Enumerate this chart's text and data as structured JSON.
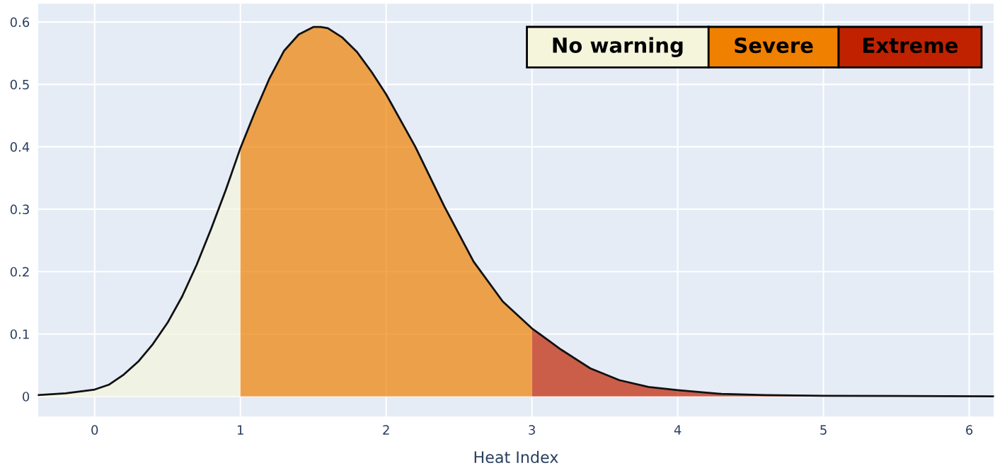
{
  "chart_data": {
    "type": "area",
    "xlabel": "Heat Index",
    "xlim": [
      -0.39,
      6.17
    ],
    "ylim": [
      -0.033,
      0.63
    ],
    "xticks": [
      0,
      1,
      2,
      3,
      4,
      5,
      6
    ],
    "yticks": [
      0,
      0.1,
      0.2,
      0.3,
      0.4,
      0.5,
      0.6
    ],
    "grid": true,
    "legend": "top right",
    "series": [
      {
        "name": "No warning",
        "color": "#f5f5dc",
        "x": [
          -0.39,
          -0.2,
          0,
          0.1,
          0.2,
          0.3,
          0.4,
          0.5,
          0.6,
          0.7,
          0.8,
          0.9,
          1.0
        ],
        "values": [
          0.002,
          0.005,
          0.011,
          0.019,
          0.035,
          0.056,
          0.084,
          0.118,
          0.16,
          0.211,
          0.269,
          0.331,
          0.398
        ]
      },
      {
        "name": "Severe",
        "color": "#f08000",
        "x": [
          1.0,
          1.1,
          1.2,
          1.3,
          1.4,
          1.5,
          1.55,
          1.6,
          1.7,
          1.8,
          1.9,
          2.0,
          2.2,
          2.4,
          2.6,
          2.8,
          3.0
        ],
        "values": [
          0.398,
          0.456,
          0.51,
          0.554,
          0.58,
          0.592,
          0.592,
          0.59,
          0.575,
          0.552,
          0.52,
          0.484,
          0.4,
          0.304,
          0.216,
          0.152,
          0.109
        ]
      },
      {
        "name": "Extreme",
        "color": "#c02200",
        "x": [
          3.0,
          3.2,
          3.4,
          3.6,
          3.8,
          4.0,
          4.3,
          4.6,
          5.0
        ],
        "values": [
          0.109,
          0.075,
          0.045,
          0.026,
          0.015,
          0.01,
          0.004,
          0.002,
          0.001
        ]
      },
      {
        "type": "line",
        "color": "#111111",
        "x": [
          -0.39,
          -0.2,
          0,
          0.1,
          0.2,
          0.3,
          0.4,
          0.5,
          0.6,
          0.7,
          0.8,
          0.9,
          1.0,
          1.1,
          1.2,
          1.3,
          1.4,
          1.5,
          1.55,
          1.6,
          1.7,
          1.8,
          1.9,
          2.0,
          2.2,
          2.4,
          2.6,
          2.8,
          3.0,
          3.2,
          3.4,
          3.6,
          3.8,
          4.0,
          4.3,
          4.6,
          5.0,
          6.17
        ],
        "values": [
          0.002,
          0.005,
          0.011,
          0.019,
          0.035,
          0.056,
          0.084,
          0.118,
          0.16,
          0.211,
          0.269,
          0.331,
          0.398,
          0.456,
          0.51,
          0.554,
          0.58,
          0.592,
          0.592,
          0.59,
          0.575,
          0.552,
          0.52,
          0.484,
          0.4,
          0.304,
          0.216,
          0.152,
          0.109,
          0.075,
          0.045,
          0.026,
          0.015,
          0.01,
          0.004,
          0.002,
          0.001,
          0.0
        ]
      }
    ]
  }
}
